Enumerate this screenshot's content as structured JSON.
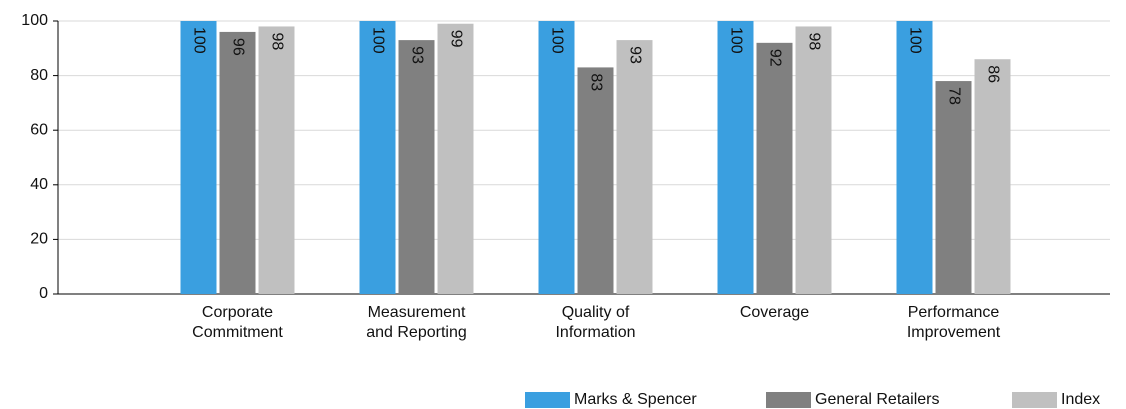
{
  "chart_data": {
    "type": "bar",
    "categories": [
      "Corporate Commitment",
      "Measurement and Reporting",
      "Quality of Information",
      "Coverage",
      "Performance Improvement"
    ],
    "series": [
      {
        "name": "Marks & Spencer",
        "color": "#3a9fe0",
        "values": [
          100,
          100,
          100,
          100,
          100
        ]
      },
      {
        "name": "General Retailers",
        "color": "#808080",
        "values": [
          96,
          93,
          83,
          92,
          78
        ]
      },
      {
        "name": "Index",
        "color": "#c0c0c0",
        "values": [
          98,
          99,
          93,
          98,
          86
        ]
      }
    ],
    "ylim": [
      0,
      100
    ],
    "yticks": [
      0,
      20,
      40,
      60,
      80,
      100
    ],
    "grid": true,
    "legend": "bottom-right"
  }
}
